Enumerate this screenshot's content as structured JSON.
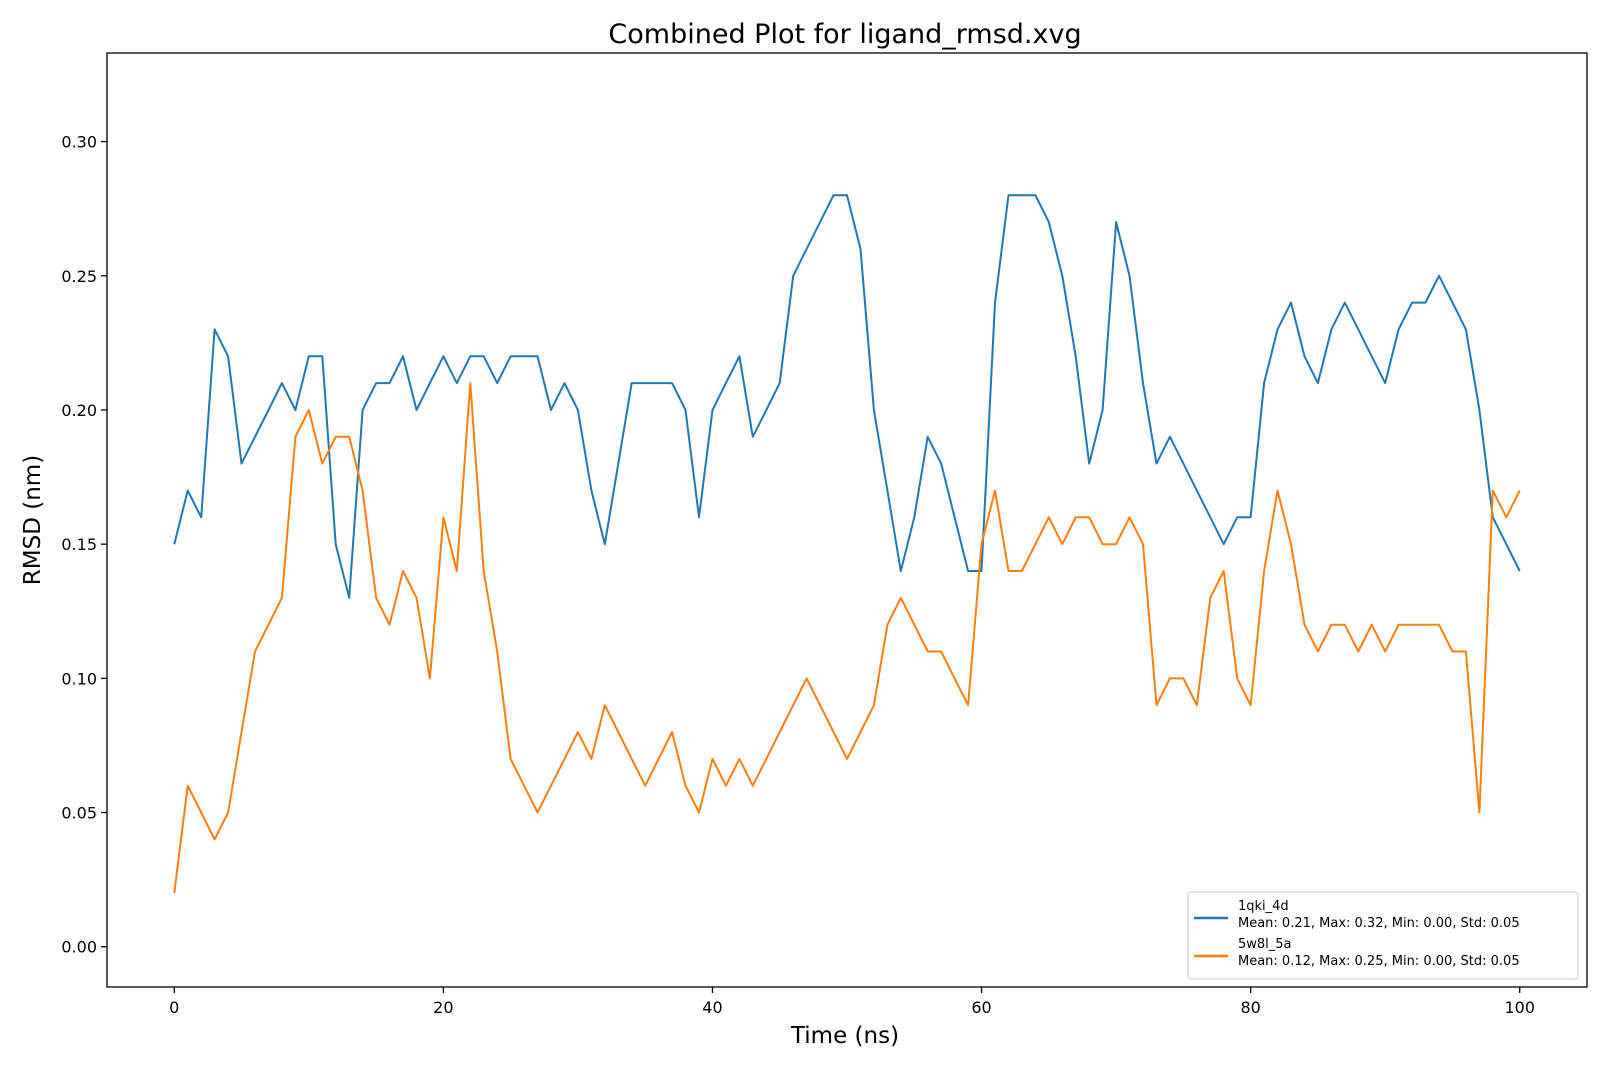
{
  "chart_data": {
    "type": "line",
    "title": "Combined Plot for ligand_rmsd.xvg",
    "xlabel": "Time (ns)",
    "ylabel": "RMSD (nm)",
    "xlim": [
      -5,
      105
    ],
    "ylim": [
      -0.015,
      0.333
    ],
    "xticks": [
      0,
      20,
      40,
      60,
      80,
      100
    ],
    "xtick_labels": [
      "0",
      "20",
      "40",
      "60",
      "80",
      "100"
    ],
    "yticks": [
      0.0,
      0.05,
      0.1,
      0.15,
      0.2,
      0.25,
      0.3
    ],
    "ytick_labels": [
      "0.00",
      "0.05",
      "0.10",
      "0.15",
      "0.20",
      "0.25",
      "0.30"
    ],
    "grid": false,
    "legend_position": "bottom-right",
    "colors": {
      "s1": "#1f77b4",
      "s2": "#ff7f0e"
    },
    "series": [
      {
        "name": "1qki_4d",
        "stats": "Mean: 0.21, Max: 0.32, Min: 0.00, Std: 0.05",
        "x": [
          0,
          1,
          2,
          3,
          4,
          5,
          6,
          7,
          8,
          9,
          10,
          11,
          12,
          13,
          14,
          15,
          16,
          17,
          18,
          19,
          20,
          21,
          22,
          23,
          24,
          25,
          26,
          27,
          28,
          29,
          30,
          31,
          32,
          33,
          34,
          35,
          36,
          37,
          38,
          39,
          40,
          41,
          42,
          43,
          44,
          45,
          46,
          47,
          48,
          49,
          50,
          51,
          52,
          53,
          54,
          55,
          56,
          57,
          58,
          59,
          60,
          61,
          62,
          63,
          64,
          65,
          66,
          67,
          68,
          69,
          70,
          71,
          72,
          73,
          74,
          75,
          76,
          77,
          78,
          79,
          80,
          81,
          82,
          83,
          84,
          85,
          86,
          87,
          88,
          89,
          90,
          91,
          92,
          93,
          94,
          95,
          96,
          97,
          98,
          99,
          100
        ],
        "values": [
          0.15,
          0.17,
          0.16,
          0.23,
          0.22,
          0.18,
          0.19,
          0.2,
          0.21,
          0.2,
          0.22,
          0.22,
          0.15,
          0.13,
          0.2,
          0.21,
          0.21,
          0.22,
          0.2,
          0.21,
          0.22,
          0.21,
          0.22,
          0.22,
          0.21,
          0.22,
          0.22,
          0.22,
          0.2,
          0.21,
          0.2,
          0.17,
          0.15,
          0.18,
          0.21,
          0.21,
          0.21,
          0.21,
          0.2,
          0.16,
          0.2,
          0.21,
          0.22,
          0.19,
          0.2,
          0.21,
          0.25,
          0.26,
          0.27,
          0.28,
          0.28,
          0.26,
          0.2,
          0.17,
          0.14,
          0.16,
          0.19,
          0.18,
          0.16,
          0.14,
          0.14,
          0.24,
          0.28,
          0.28,
          0.28,
          0.27,
          0.25,
          0.22,
          0.18,
          0.2,
          0.27,
          0.25,
          0.21,
          0.18,
          0.19,
          0.18,
          0.17,
          0.16,
          0.15,
          0.16,
          0.16,
          0.21,
          0.23,
          0.24,
          0.22,
          0.21,
          0.23,
          0.24,
          0.23,
          0.22,
          0.21,
          0.23,
          0.24,
          0.24,
          0.25,
          0.24,
          0.23,
          0.2,
          0.16,
          0.15,
          0.14
        ]
      },
      {
        "name": "5w8l_5a",
        "stats": "Mean: 0.12, Max: 0.25, Min: 0.00, Std: 0.05",
        "x": [
          0,
          1,
          2,
          3,
          4,
          5,
          6,
          7,
          8,
          9,
          10,
          11,
          12,
          13,
          14,
          15,
          16,
          17,
          18,
          19,
          20,
          21,
          22,
          23,
          24,
          25,
          26,
          27,
          28,
          29,
          30,
          31,
          32,
          33,
          34,
          35,
          36,
          37,
          38,
          39,
          40,
          41,
          42,
          43,
          44,
          45,
          46,
          47,
          48,
          49,
          50,
          51,
          52,
          53,
          54,
          55,
          56,
          57,
          58,
          59,
          60,
          61,
          62,
          63,
          64,
          65,
          66,
          67,
          68,
          69,
          70,
          71,
          72,
          73,
          74,
          75,
          76,
          77,
          78,
          79,
          80,
          81,
          82,
          83,
          84,
          85,
          86,
          87,
          88,
          89,
          90,
          91,
          92,
          93,
          94,
          95,
          96,
          97,
          98,
          99,
          100
        ],
        "values": [
          0.02,
          0.06,
          0.05,
          0.04,
          0.05,
          0.08,
          0.11,
          0.12,
          0.13,
          0.19,
          0.2,
          0.18,
          0.19,
          0.19,
          0.17,
          0.13,
          0.12,
          0.14,
          0.13,
          0.1,
          0.16,
          0.14,
          0.21,
          0.14,
          0.11,
          0.07,
          0.06,
          0.05,
          0.06,
          0.07,
          0.08,
          0.07,
          0.09,
          0.08,
          0.07,
          0.06,
          0.07,
          0.08,
          0.06,
          0.05,
          0.07,
          0.06,
          0.07,
          0.06,
          0.07,
          0.08,
          0.09,
          0.1,
          0.09,
          0.08,
          0.07,
          0.08,
          0.09,
          0.12,
          0.13,
          0.12,
          0.11,
          0.11,
          0.1,
          0.09,
          0.15,
          0.17,
          0.14,
          0.14,
          0.15,
          0.16,
          0.15,
          0.16,
          0.16,
          0.15,
          0.15,
          0.16,
          0.15,
          0.09,
          0.1,
          0.1,
          0.09,
          0.13,
          0.14,
          0.1,
          0.09,
          0.14,
          0.17,
          0.15,
          0.12,
          0.11,
          0.12,
          0.12,
          0.11,
          0.12,
          0.11,
          0.12,
          0.12,
          0.12,
          0.12,
          0.11,
          0.11,
          0.05,
          0.17,
          0.16,
          0.17
        ]
      }
    ]
  }
}
